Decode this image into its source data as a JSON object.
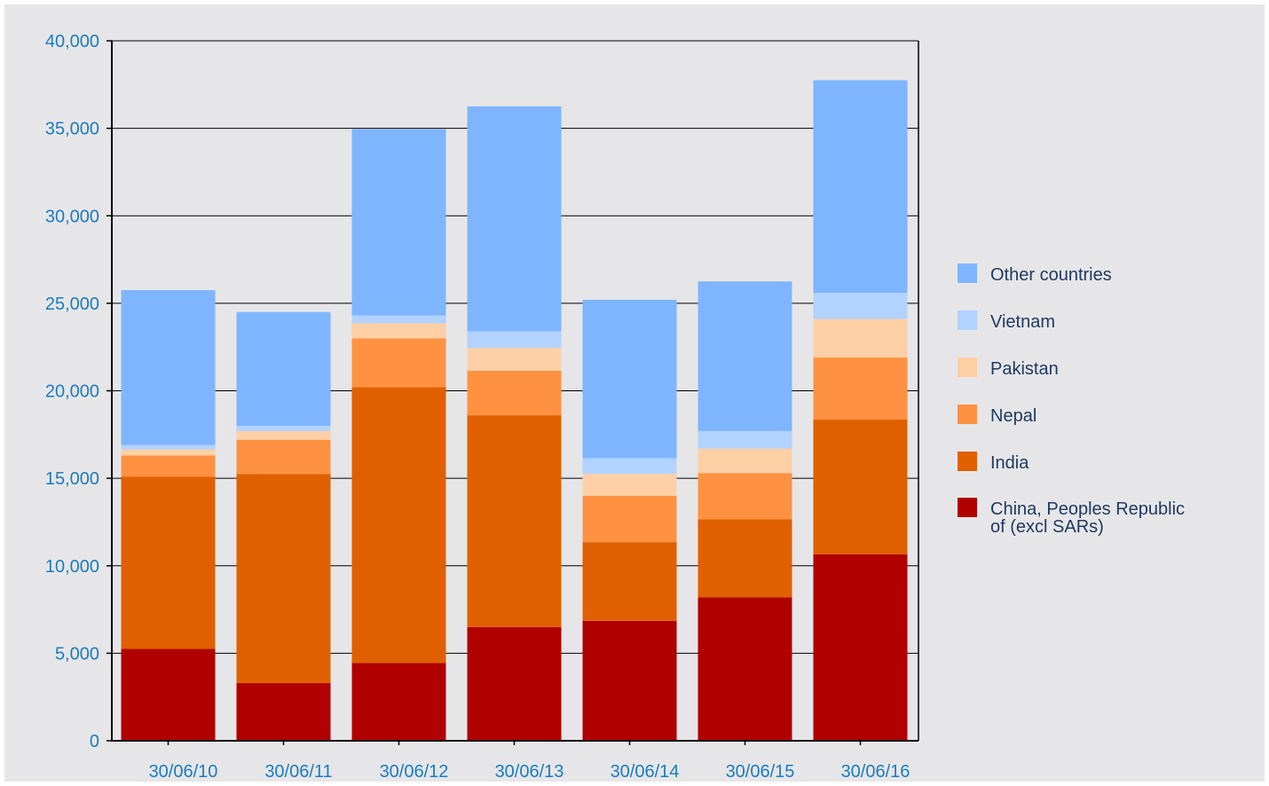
{
  "chart_data": {
    "type": "bar",
    "stacked": true,
    "categories": [
      "30/06/10",
      "30/06/11",
      "30/06/12",
      "30/06/13",
      "30/06/14",
      "30/06/15",
      "30/06/16"
    ],
    "series": [
      {
        "name": "China, Peoples Republic of (excl SARs)",
        "color": "#b00000",
        "values": [
          5250,
          3300,
          4450,
          6500,
          6850,
          8200,
          10650
        ]
      },
      {
        "name": "India",
        "color": "#e06000",
        "values": [
          9850,
          11950,
          15750,
          12100,
          4500,
          4450,
          7700
        ]
      },
      {
        "name": "Nepal",
        "color": "#ff9242",
        "values": [
          1200,
          1950,
          2800,
          2550,
          2650,
          2650,
          3550
        ]
      },
      {
        "name": "Pakistan",
        "color": "#ffcfa6",
        "values": [
          350,
          500,
          850,
          1300,
          1250,
          1400,
          2200
        ]
      },
      {
        "name": "Vietnam",
        "color": "#b2d2ff",
        "values": [
          250,
          300,
          450,
          950,
          900,
          1000,
          1500
        ]
      },
      {
        "name": "Other countries",
        "color": "#7fb5ff",
        "values": [
          8850,
          6500,
          10650,
          12850,
          9050,
          8550,
          12150
        ]
      }
    ],
    "ylim": [
      0,
      40000
    ],
    "yticks": [
      0,
      5000,
      10000,
      15000,
      20000,
      25000,
      30000,
      35000,
      40000
    ],
    "ytick_labels": [
      "0",
      "5,000",
      "10,000",
      "15,000",
      "20,000",
      "25,000",
      "30,000",
      "35,000",
      "40,000"
    ],
    "grid": true,
    "legend_position": "right",
    "legend_entries": [
      {
        "lines": [
          "Other countries"
        ],
        "color": "#7fb5ff"
      },
      {
        "lines": [
          "Vietnam"
        ],
        "color": "#b2d2ff"
      },
      {
        "lines": [
          "Pakistan"
        ],
        "color": "#ffcfa6"
      },
      {
        "lines": [
          "Nepal"
        ],
        "color": "#ff9242"
      },
      {
        "lines": [
          "India"
        ],
        "color": "#e06000"
      },
      {
        "lines": [
          "China, Peoples Republic",
          "of (excl SARs)"
        ],
        "color": "#b00000"
      }
    ],
    "colors": {
      "background": "#e6e6e8",
      "axis_label_text": "#1a7cc1",
      "legend_text": "#1f3a60",
      "grid": "#000000"
    }
  }
}
